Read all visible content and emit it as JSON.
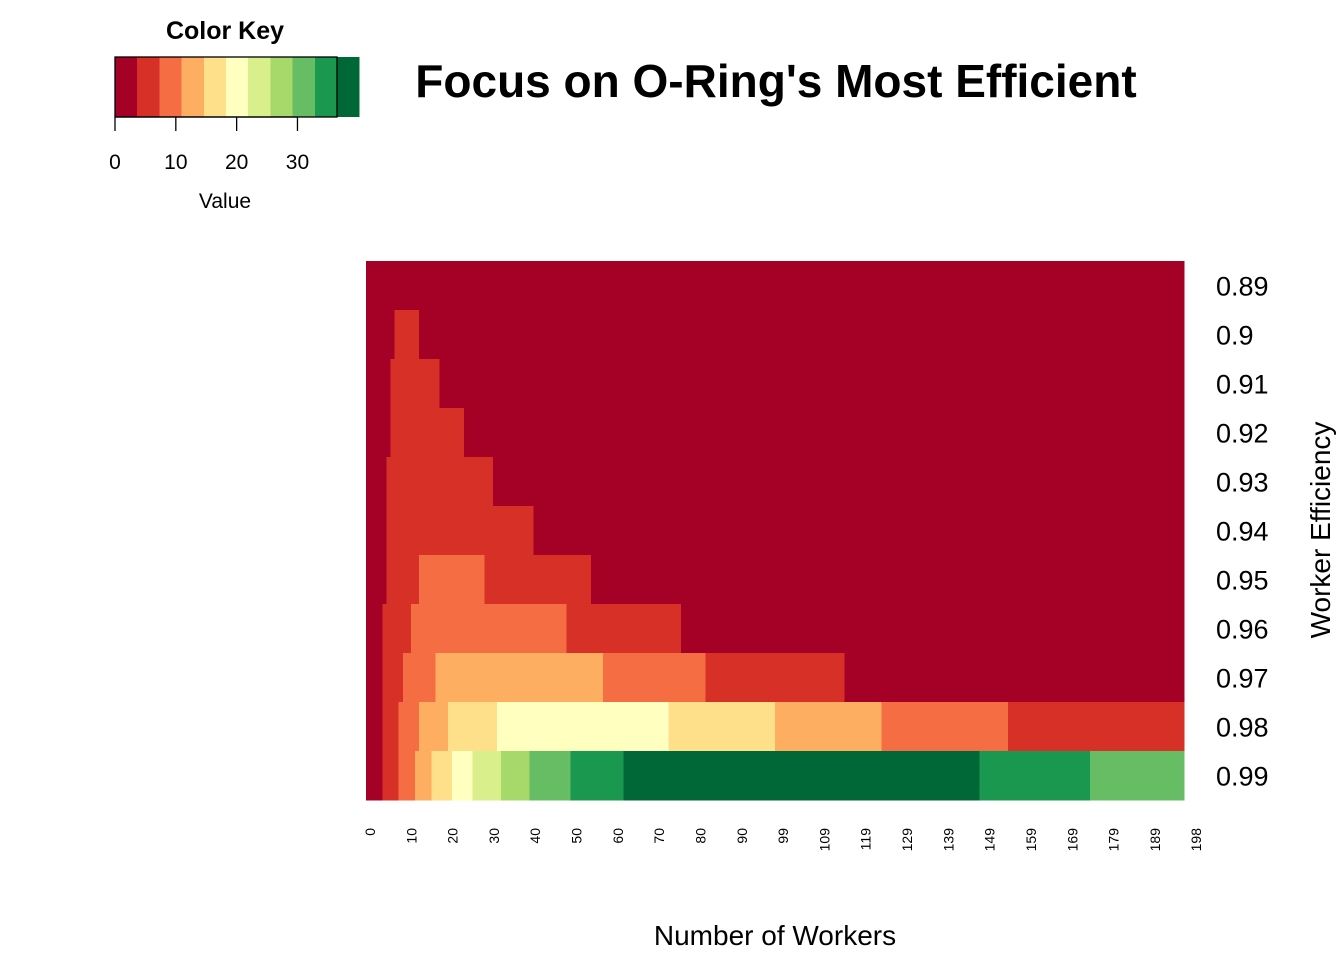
{
  "chart_data": {
    "type": "heatmap",
    "title": "Focus on O-Ring's Most Efficient",
    "xlabel": "Number of Workers",
    "ylabel": "Worker Efficiency",
    "x_range": [
      0,
      200
    ],
    "x_tick_labels": [
      "0",
      "10",
      "20",
      "30",
      "40",
      "50",
      "60",
      "70",
      "80",
      "90",
      "99",
      "109",
      "119",
      "129",
      "139",
      "149",
      "159",
      "169",
      "179",
      "189",
      "198"
    ],
    "y_tick_labels": [
      "0.89",
      "0.9",
      "0.91",
      "0.92",
      "0.93",
      "0.94",
      "0.95",
      "0.96",
      "0.97",
      "0.98",
      "0.99"
    ],
    "color_key": {
      "title": "Color Key",
      "xlabel": "Value",
      "range": [
        0,
        36.5
      ],
      "ticks": [
        "0",
        "10",
        "20",
        "30"
      ],
      "bin_width": 3.65,
      "colors": [
        "#A50026",
        "#D73027",
        "#F46D43",
        "#FDAE61",
        "#FEE08B",
        "#FFFFBF",
        "#D9EF8B",
        "#A6D96A",
        "#66BD63",
        "#1A9850",
        "#006837"
      ]
    },
    "rows": [
      {
        "efficiency": "0.89",
        "segments": [
          {
            "from": 0,
            "to": 200,
            "bin": 0
          }
        ]
      },
      {
        "efficiency": "0.9",
        "segments": [
          {
            "from": 0,
            "to": 7,
            "bin": 0
          },
          {
            "from": 7,
            "to": 13,
            "bin": 1
          },
          {
            "from": 13,
            "to": 200,
            "bin": 0
          }
        ]
      },
      {
        "efficiency": "0.91",
        "segments": [
          {
            "from": 0,
            "to": 6,
            "bin": 0
          },
          {
            "from": 6,
            "to": 18,
            "bin": 1
          },
          {
            "from": 18,
            "to": 200,
            "bin": 0
          }
        ]
      },
      {
        "efficiency": "0.92",
        "segments": [
          {
            "from": 0,
            "to": 6,
            "bin": 0
          },
          {
            "from": 6,
            "to": 24,
            "bin": 1
          },
          {
            "from": 24,
            "to": 200,
            "bin": 0
          }
        ]
      },
      {
        "efficiency": "0.93",
        "segments": [
          {
            "from": 0,
            "to": 5,
            "bin": 0
          },
          {
            "from": 5,
            "to": 31,
            "bin": 1
          },
          {
            "from": 31,
            "to": 200,
            "bin": 0
          }
        ]
      },
      {
        "efficiency": "0.94",
        "segments": [
          {
            "from": 0,
            "to": 5,
            "bin": 0
          },
          {
            "from": 5,
            "to": 41,
            "bin": 1
          },
          {
            "from": 41,
            "to": 200,
            "bin": 0
          }
        ]
      },
      {
        "efficiency": "0.95",
        "segments": [
          {
            "from": 0,
            "to": 5,
            "bin": 0
          },
          {
            "from": 5,
            "to": 13,
            "bin": 1
          },
          {
            "from": 13,
            "to": 29,
            "bin": 2
          },
          {
            "from": 29,
            "to": 55,
            "bin": 1
          },
          {
            "from": 55,
            "to": 200,
            "bin": 0
          }
        ]
      },
      {
        "efficiency": "0.96",
        "segments": [
          {
            "from": 0,
            "to": 4,
            "bin": 0
          },
          {
            "from": 4,
            "to": 11,
            "bin": 1
          },
          {
            "from": 11,
            "to": 49,
            "bin": 2
          },
          {
            "from": 49,
            "to": 77,
            "bin": 1
          },
          {
            "from": 77,
            "to": 200,
            "bin": 0
          }
        ]
      },
      {
        "efficiency": "0.97",
        "segments": [
          {
            "from": 0,
            "to": 4,
            "bin": 0
          },
          {
            "from": 4,
            "to": 9,
            "bin": 1
          },
          {
            "from": 9,
            "to": 17,
            "bin": 2
          },
          {
            "from": 17,
            "to": 58,
            "bin": 3
          },
          {
            "from": 58,
            "to": 83,
            "bin": 2
          },
          {
            "from": 83,
            "to": 117,
            "bin": 1
          },
          {
            "from": 117,
            "to": 200,
            "bin": 0
          }
        ]
      },
      {
        "efficiency": "0.98",
        "segments": [
          {
            "from": 0,
            "to": 4,
            "bin": 0
          },
          {
            "from": 4,
            "to": 8,
            "bin": 1
          },
          {
            "from": 8,
            "to": 13,
            "bin": 2
          },
          {
            "from": 13,
            "to": 20,
            "bin": 3
          },
          {
            "from": 20,
            "to": 32,
            "bin": 4
          },
          {
            "from": 32,
            "to": 74,
            "bin": 5
          },
          {
            "from": 74,
            "to": 100,
            "bin": 4
          },
          {
            "from": 100,
            "to": 126,
            "bin": 3
          },
          {
            "from": 126,
            "to": 157,
            "bin": 2
          },
          {
            "from": 157,
            "to": 200,
            "bin": 1
          }
        ]
      },
      {
        "efficiency": "0.99",
        "segments": [
          {
            "from": 0,
            "to": 4,
            "bin": 0
          },
          {
            "from": 4,
            "to": 8,
            "bin": 1
          },
          {
            "from": 8,
            "to": 12,
            "bin": 2
          },
          {
            "from": 12,
            "to": 16,
            "bin": 3
          },
          {
            "from": 16,
            "to": 21,
            "bin": 4
          },
          {
            "from": 21,
            "to": 26,
            "bin": 5
          },
          {
            "from": 26,
            "to": 33,
            "bin": 6
          },
          {
            "from": 33,
            "to": 40,
            "bin": 7
          },
          {
            "from": 40,
            "to": 50,
            "bin": 8
          },
          {
            "from": 50,
            "to": 63,
            "bin": 9
          },
          {
            "from": 63,
            "to": 150,
            "bin": 10
          },
          {
            "from": 150,
            "to": 177,
            "bin": 9
          },
          {
            "from": 177,
            "to": 200,
            "bin": 8
          }
        ]
      }
    ]
  }
}
